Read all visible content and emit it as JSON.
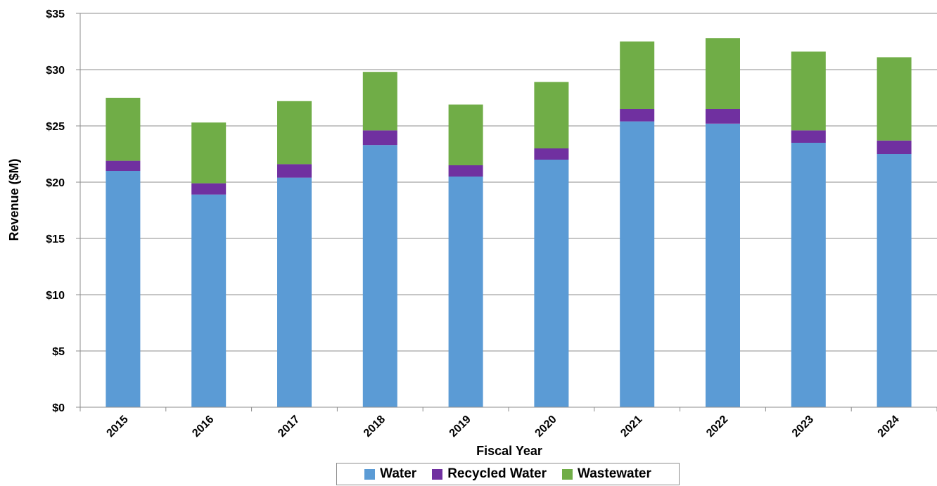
{
  "chart_data": {
    "type": "bar",
    "stacked": true,
    "title": "",
    "xlabel": "Fiscal Year",
    "ylabel": "Revenue ($M)",
    "ylim": [
      0,
      35
    ],
    "y_ticks": [
      0,
      5,
      10,
      15,
      20,
      25,
      30,
      35
    ],
    "y_tick_labels": [
      "$0",
      "$5",
      "$10",
      "$15",
      "$20",
      "$25",
      "$30",
      "$35"
    ],
    "grid": true,
    "legend_position": "bottom",
    "categories": [
      "2015",
      "2016",
      "2017",
      "2018",
      "2019",
      "2020",
      "2021",
      "2022",
      "2023",
      "2024"
    ],
    "series": [
      {
        "name": "Water",
        "color": "#5b9bd5",
        "values": [
          21.0,
          18.9,
          20.4,
          23.3,
          20.5,
          22.0,
          25.4,
          25.2,
          23.5,
          22.5
        ]
      },
      {
        "name": "Recycled Water",
        "color": "#7030a0",
        "values": [
          0.9,
          1.0,
          1.2,
          1.3,
          1.0,
          1.0,
          1.1,
          1.3,
          1.1,
          1.2
        ]
      },
      {
        "name": "Wastewater",
        "color": "#70ad47",
        "values": [
          5.6,
          5.4,
          5.6,
          5.2,
          5.4,
          5.9,
          6.0,
          6.3,
          7.0,
          7.4
        ]
      }
    ]
  }
}
